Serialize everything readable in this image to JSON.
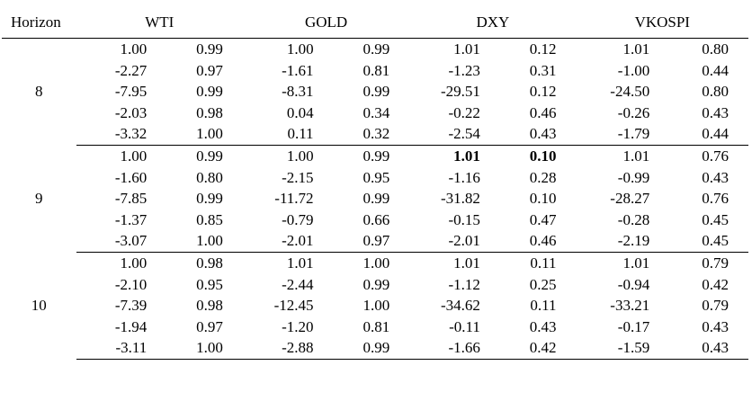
{
  "table": {
    "header": {
      "horizon": "Horizon",
      "columns": [
        "WTI",
        "GOLD",
        "DXY",
        "VKOSPI"
      ]
    },
    "groups": [
      {
        "horizon": "8",
        "rows": [
          [
            "1.00",
            "0.99",
            "1.00",
            "0.99",
            "1.01",
            "0.12",
            "1.01",
            "0.80"
          ],
          [
            "-2.27",
            "0.97",
            "-1.61",
            "0.81",
            "-1.23",
            "0.31",
            "-1.00",
            "0.44"
          ],
          [
            "-7.95",
            "0.99",
            "-8.31",
            "0.99",
            "-29.51",
            "0.12",
            "-24.50",
            "0.80"
          ],
          [
            "-2.03",
            "0.98",
            "0.04",
            "0.34",
            "-0.22",
            "0.46",
            "-0.26",
            "0.43"
          ],
          [
            "-3.32",
            "1.00",
            "0.11",
            "0.32",
            "-2.54",
            "0.43",
            "-1.79",
            "0.44"
          ]
        ]
      },
      {
        "horizon": "9",
        "rows": [
          [
            "1.00",
            "0.99",
            "1.00",
            "0.99",
            "1.01",
            "0.10",
            "1.01",
            "0.76"
          ],
          [
            "-1.60",
            "0.80",
            "-2.15",
            "0.95",
            "-1.16",
            "0.28",
            "-0.99",
            "0.43"
          ],
          [
            "-7.85",
            "0.99",
            "-11.72",
            "0.99",
            "-31.82",
            "0.10",
            "-28.27",
            "0.76"
          ],
          [
            "-1.37",
            "0.85",
            "-0.79",
            "0.66",
            "-0.15",
            "0.47",
            "-0.28",
            "0.45"
          ],
          [
            "-3.07",
            "1.00",
            "-2.01",
            "0.97",
            "-2.01",
            "0.46",
            "-2.19",
            "0.45"
          ]
        ]
      },
      {
        "horizon": "10",
        "rows": [
          [
            "1.00",
            "0.98",
            "1.01",
            "1.00",
            "1.01",
            "0.11",
            "1.01",
            "0.79"
          ],
          [
            "-2.10",
            "0.95",
            "-2.44",
            "0.99",
            "-1.12",
            "0.25",
            "-0.94",
            "0.42"
          ],
          [
            "-7.39",
            "0.98",
            "-12.45",
            "1.00",
            "-34.62",
            "0.11",
            "-33.21",
            "0.79"
          ],
          [
            "-1.94",
            "0.97",
            "-1.20",
            "0.81",
            "-0.11",
            "0.43",
            "-0.17",
            "0.43"
          ],
          [
            "-3.11",
            "1.00",
            "-2.88",
            "0.99",
            "-1.66",
            "0.42",
            "-1.59",
            "0.43"
          ]
        ]
      }
    ],
    "bold_cells": [
      [
        1,
        0,
        4
      ],
      [
        1,
        0,
        5
      ]
    ]
  }
}
